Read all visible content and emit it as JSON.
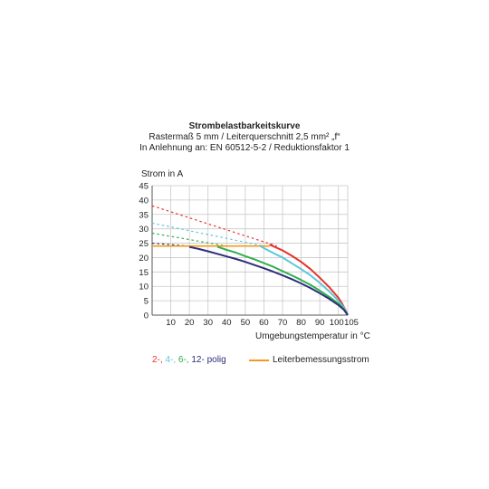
{
  "chart_data": {
    "type": "line",
    "title": "Strombelastbarkeitskurve",
    "subtitle_lines": [
      "Rastermaß 5 mm / Leiterquerschnitt 2,5 mm² „f“",
      "In Anlehnung an: EN 60512-5-2 / Reduktionsfaktor 1"
    ],
    "ylabel": "Strom in A",
    "xlabel": "Umgebungstemperatur in °C",
    "xlim": [
      0,
      105
    ],
    "ylim": [
      0,
      45
    ],
    "x_ticks": [
      10,
      20,
      30,
      40,
      50,
      60,
      70,
      80,
      90,
      100,
      105
    ],
    "y_ticks": [
      0,
      5,
      10,
      15,
      20,
      25,
      30,
      35,
      40,
      45
    ],
    "grid": true,
    "series": [
      {
        "name": "2",
        "color": "#e8312a",
        "dashed": [
          [
            0,
            38
          ],
          [
            67,
            24
          ]
        ],
        "values": [
          [
            63,
            24.5
          ],
          [
            70,
            22.5
          ],
          [
            75,
            20.6
          ],
          [
            80,
            18.5
          ],
          [
            85,
            16
          ],
          [
            90,
            13
          ],
          [
            95,
            9.8
          ],
          [
            100,
            6
          ],
          [
            102,
            4
          ],
          [
            104,
            1.5
          ],
          [
            105,
            0
          ]
        ]
      },
      {
        "name": "4",
        "color": "#5cc7d9",
        "dashed": [
          [
            0,
            32
          ],
          [
            60,
            24
          ]
        ],
        "values": [
          [
            58,
            24
          ],
          [
            65,
            21.6
          ],
          [
            70,
            20
          ],
          [
            75,
            18
          ],
          [
            80,
            16
          ],
          [
            85,
            13.8
          ],
          [
            90,
            11.2
          ],
          [
            95,
            8.3
          ],
          [
            100,
            5
          ],
          [
            103,
            2.5
          ],
          [
            105,
            0
          ]
        ]
      },
      {
        "name": "6",
        "color": "#2fae4a",
        "dashed": [
          [
            0,
            28.5
          ],
          [
            40,
            24
          ]
        ],
        "values": [
          [
            35,
            23.8
          ],
          [
            40,
            22.7
          ],
          [
            45,
            21.7
          ],
          [
            50,
            20.5
          ],
          [
            55,
            19.4
          ],
          [
            60,
            18.1
          ],
          [
            65,
            16.8
          ],
          [
            70,
            15.3
          ],
          [
            75,
            13.8
          ],
          [
            80,
            12.2
          ],
          [
            85,
            10.5
          ],
          [
            90,
            8.5
          ],
          [
            95,
            6.4
          ],
          [
            100,
            4
          ],
          [
            103,
            2
          ],
          [
            105,
            0
          ]
        ]
      },
      {
        "name": "12",
        "color": "#2b2f7a",
        "dashed": [
          [
            0,
            25
          ],
          [
            20,
            24
          ]
        ],
        "values": [
          [
            20,
            23.7
          ],
          [
            25,
            23
          ],
          [
            30,
            22.2
          ],
          [
            35,
            21.3
          ],
          [
            40,
            20.4
          ],
          [
            45,
            19.5
          ],
          [
            50,
            18.5
          ],
          [
            55,
            17.4
          ],
          [
            60,
            16.3
          ],
          [
            65,
            15.1
          ],
          [
            70,
            13.8
          ],
          [
            75,
            12.5
          ],
          [
            80,
            11
          ],
          [
            85,
            9.4
          ],
          [
            90,
            7.6
          ],
          [
            95,
            5.7
          ],
          [
            100,
            3.5
          ],
          [
            103,
            1.8
          ],
          [
            105,
            0
          ]
        ]
      }
    ],
    "reference_line": {
      "name": "Leiterbemessungsstrom",
      "color": "#f39a1e",
      "y": 24,
      "x_range": [
        0,
        63
      ]
    },
    "legend": {
      "polig_parts": [
        {
          "text": "2-, ",
          "color": "#e8312a"
        },
        {
          "text": "4-, ",
          "color": "#5cc7d9"
        },
        {
          "text": "6-, ",
          "color": "#2fae4a"
        },
        {
          "text": "12- polig",
          "color": "#2b2f7a"
        }
      ],
      "current_label": "Leiterbemessungsstrom",
      "current_color": "#f39a1e"
    }
  }
}
